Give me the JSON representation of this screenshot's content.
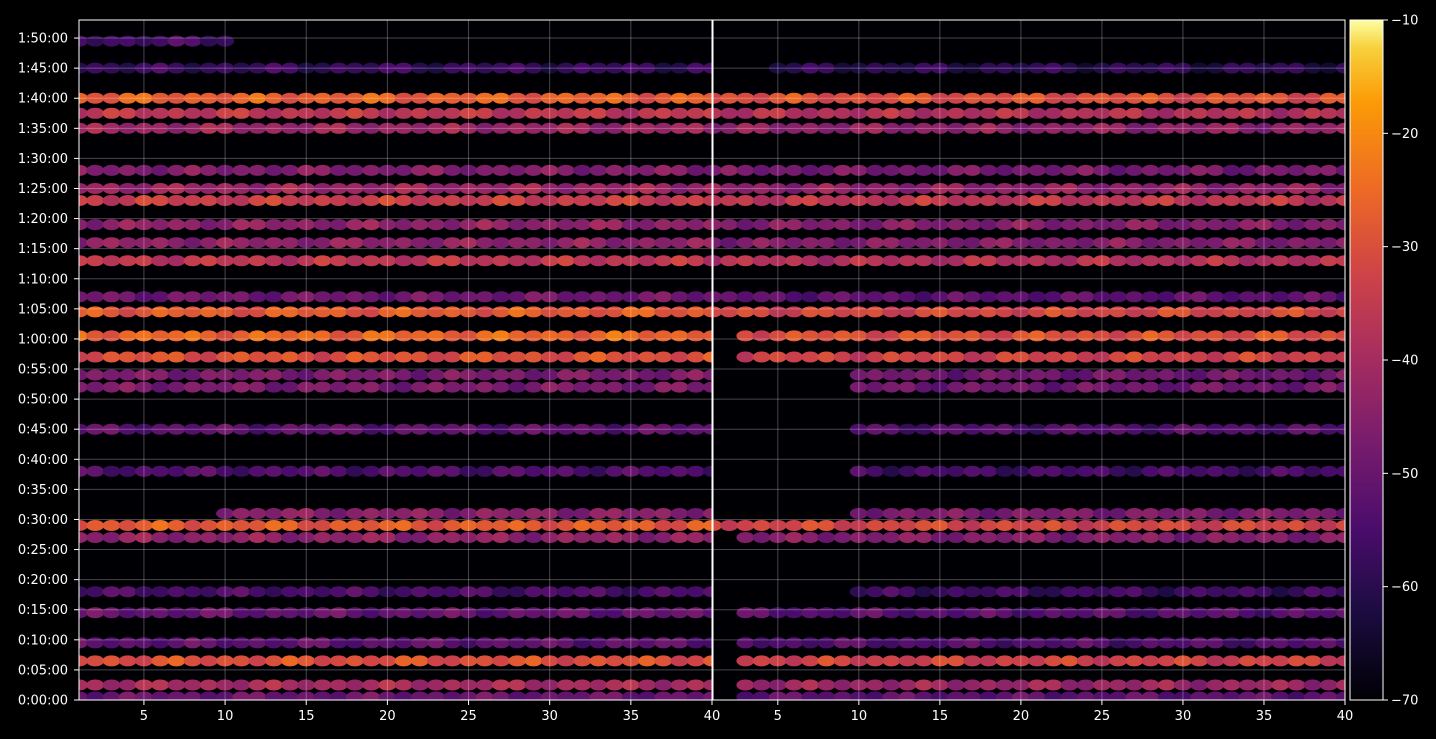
{
  "chart_data": {
    "type": "heatmap",
    "colormap": "inferno",
    "background": "#000000",
    "grid": true,
    "x_range": [
      1,
      40
    ],
    "y_range_seconds": [
      0,
      6780
    ],
    "x_ticks": [
      "5",
      "10",
      "15",
      "20",
      "25",
      "30",
      "35",
      "40"
    ],
    "x_tick_values": [
      5,
      10,
      15,
      20,
      25,
      30,
      35,
      40
    ],
    "y_ticks": [
      "0:00:00",
      "0:05:00",
      "0:10:00",
      "0:15:00",
      "0:20:00",
      "0:25:00",
      "0:30:00",
      "0:35:00",
      "0:40:00",
      "0:45:00",
      "0:50:00",
      "0:55:00",
      "1:00:00",
      "1:05:00",
      "1:10:00",
      "1:15:00",
      "1:20:00",
      "1:25:00",
      "1:30:00",
      "1:35:00",
      "1:40:00",
      "1:45:00",
      "1:50:00"
    ],
    "colorbar": {
      "range": [
        -70,
        -10
      ],
      "ticks": [
        "−70",
        "−60",
        "−50",
        "−40",
        "−30",
        "−20",
        "−10"
      ],
      "tick_values": [
        -70,
        -60,
        -50,
        -40,
        -30,
        -20,
        -10
      ]
    },
    "panels": [
      {
        "name": "",
        "bands": [
          {
            "t": 6570,
            "v": -56,
            "x0": 1,
            "x1": 10
          },
          {
            "t": 6300,
            "v": -58,
            "x0": 1,
            "x1": 40
          },
          {
            "t": 6000,
            "v": -27,
            "x0": 1,
            "x1": 40
          },
          {
            "t": 5850,
            "v": -36,
            "x0": 1,
            "x1": 40
          },
          {
            "t": 5700,
            "v": -42,
            "x0": 1,
            "x1": 40
          },
          {
            "t": 5280,
            "v": -46,
            "x0": 1,
            "x1": 40
          },
          {
            "t": 5100,
            "v": -42,
            "x0": 1,
            "x1": 40
          },
          {
            "t": 4980,
            "v": -34,
            "x0": 1,
            "x1": 40
          },
          {
            "t": 4740,
            "v": -44,
            "x0": 1,
            "x1": 40
          },
          {
            "t": 4560,
            "v": -44,
            "x0": 1,
            "x1": 40
          },
          {
            "t": 4380,
            "v": -36,
            "x0": 1,
            "x1": 40
          },
          {
            "t": 4020,
            "v": -49,
            "x0": 1,
            "x1": 40
          },
          {
            "t": 3870,
            "v": -28,
            "x0": 1,
            "x1": 40
          },
          {
            "t": 3630,
            "v": -26,
            "x0": 1,
            "x1": 40
          },
          {
            "t": 3420,
            "v": -30,
            "x0": 1,
            "x1": 40
          },
          {
            "t": 3240,
            "v": -47,
            "x0": 1,
            "x1": 40
          },
          {
            "t": 3120,
            "v": -47,
            "x0": 1,
            "x1": 40
          },
          {
            "t": 2700,
            "v": -52,
            "x0": 1,
            "x1": 40
          },
          {
            "t": 2280,
            "v": -54,
            "x0": 1,
            "x1": 40
          },
          {
            "t": 1860,
            "v": -45,
            "x0": 10,
            "x1": 40
          },
          {
            "t": 1740,
            "v": -28,
            "x0": 1,
            "x1": 40
          },
          {
            "t": 1620,
            "v": -44,
            "x0": 1,
            "x1": 40
          },
          {
            "t": 1080,
            "v": -55,
            "x0": 1,
            "x1": 40
          },
          {
            "t": 870,
            "v": -51,
            "x0": 1,
            "x1": 40
          },
          {
            "t": 570,
            "v": -52,
            "x0": 1,
            "x1": 40
          },
          {
            "t": 390,
            "v": -30,
            "x0": 1,
            "x1": 40
          },
          {
            "t": 150,
            "v": -40,
            "x0": 1,
            "x1": 40
          },
          {
            "t": 30,
            "v": -50,
            "x0": 1,
            "x1": 40
          }
        ]
      },
      {
        "name": "",
        "bands": [
          {
            "t": 6300,
            "v": -60,
            "x0": 5,
            "x1": 40
          },
          {
            "t": 6000,
            "v": -30,
            "x0": 1,
            "x1": 40
          },
          {
            "t": 5850,
            "v": -38,
            "x0": 1,
            "x1": 40
          },
          {
            "t": 5700,
            "v": -44,
            "x0": 1,
            "x1": 40
          },
          {
            "t": 5280,
            "v": -48,
            "x0": 1,
            "x1": 40
          },
          {
            "t": 5100,
            "v": -44,
            "x0": 1,
            "x1": 40
          },
          {
            "t": 4980,
            "v": -36,
            "x0": 1,
            "x1": 40
          },
          {
            "t": 4740,
            "v": -46,
            "x0": 1,
            "x1": 40
          },
          {
            "t": 4560,
            "v": -46,
            "x0": 1,
            "x1": 40
          },
          {
            "t": 4380,
            "v": -38,
            "x0": 1,
            "x1": 40
          },
          {
            "t": 4020,
            "v": -52,
            "x0": 1,
            "x1": 40
          },
          {
            "t": 3870,
            "v": -32,
            "x0": 1,
            "x1": 40
          },
          {
            "t": 3630,
            "v": -30,
            "x0": 3,
            "x1": 40
          },
          {
            "t": 3420,
            "v": -33,
            "x0": 3,
            "x1": 40
          },
          {
            "t": 3240,
            "v": -49,
            "x0": 10,
            "x1": 40
          },
          {
            "t": 3120,
            "v": -49,
            "x0": 10,
            "x1": 40
          },
          {
            "t": 2700,
            "v": -54,
            "x0": 10,
            "x1": 40
          },
          {
            "t": 2280,
            "v": -56,
            "x0": 10,
            "x1": 40
          },
          {
            "t": 1860,
            "v": -47,
            "x0": 10,
            "x1": 40
          },
          {
            "t": 1740,
            "v": -32,
            "x0": 1,
            "x1": 40
          },
          {
            "t": 1620,
            "v": -46,
            "x0": 3,
            "x1": 40
          },
          {
            "t": 1080,
            "v": -57,
            "x0": 10,
            "x1": 40
          },
          {
            "t": 870,
            "v": -53,
            "x0": 3,
            "x1": 40
          },
          {
            "t": 570,
            "v": -54,
            "x0": 3,
            "x1": 40
          },
          {
            "t": 390,
            "v": -33,
            "x0": 3,
            "x1": 40
          },
          {
            "t": 150,
            "v": -42,
            "x0": 3,
            "x1": 40
          },
          {
            "t": 30,
            "v": -52,
            "x0": 3,
            "x1": 40
          }
        ]
      }
    ]
  }
}
